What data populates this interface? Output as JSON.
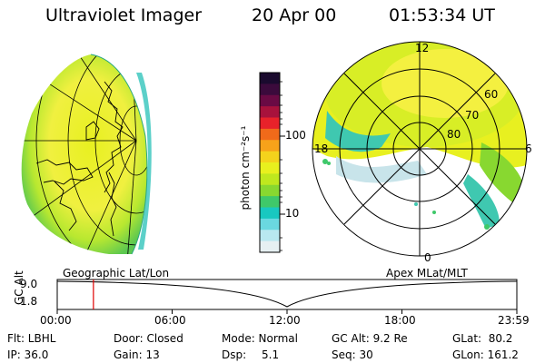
{
  "header": {
    "title": "Ultraviolet Imager",
    "date": "20 Apr 00",
    "time": "01:53:34 UT"
  },
  "colorbar": {
    "unit_label": "photon cm⁻²s⁻¹",
    "tick_labels": [
      "100",
      "10"
    ],
    "colors": [
      "#1a0a2e",
      "#3b0a3c",
      "#6a0a44",
      "#a8123c",
      "#e8222a",
      "#f06a1a",
      "#f7a21a",
      "#f4d31c",
      "#e8f01e",
      "#bfe81e",
      "#88d830",
      "#3fc86a",
      "#18c8c0",
      "#6ad8e0",
      "#b8e8f0",
      "#e6f0f2"
    ]
  },
  "polar_map": {
    "mlt_labels": {
      "top": "12",
      "left": "18",
      "right": "6",
      "bottom": "0"
    },
    "lat_labels": [
      "60",
      "70",
      "80"
    ]
  },
  "timeline": {
    "ylabel": "GC Alt",
    "y_ticks": [
      "9.0",
      "1.8"
    ],
    "left_label": "Geographic Lat/Lon",
    "right_label": "Apex MLat/MLT",
    "x_ticks": [
      "00:00",
      "06:00",
      "12:00",
      "18:00",
      "23:59"
    ],
    "marker_hour": 1.89
  },
  "info": {
    "flt": "Flt: LBHL",
    "ip": "IP: 36.0",
    "door": "Door: Closed",
    "gain": "Gain: 13",
    "mode": "Mode: Normal",
    "dsp_label": "Dsp:",
    "dsp_value": "5.1",
    "gc_alt": "GC Alt: 9.2 Re",
    "seq": "Seq: 30",
    "glat": "GLat:  80.2",
    "glon": "GLon: 161.2"
  }
}
